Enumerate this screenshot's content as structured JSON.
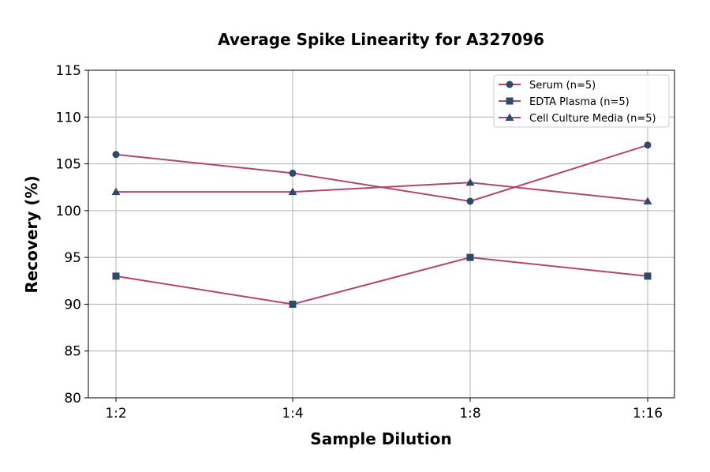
{
  "chart_data": {
    "type": "line",
    "title": "Average Spike Linearity for A327096",
    "xlabel": "Sample Dilution",
    "ylabel": "Recovery (%)",
    "categories": [
      "1:2",
      "1:4",
      "1:8",
      "1:16"
    ],
    "ylim": [
      80,
      115
    ],
    "yticks": [
      80,
      85,
      90,
      95,
      100,
      105,
      110,
      115
    ],
    "grid": true,
    "legend_position": "top-right",
    "line_color": "#b5446e",
    "marker_color": "#2e4a6b",
    "series": [
      {
        "name": "Serum (n=5)",
        "marker": "circle",
        "values": [
          106,
          104,
          101,
          107
        ]
      },
      {
        "name": "EDTA Plasma (n=5)",
        "marker": "square",
        "values": [
          93,
          90,
          95,
          93
        ]
      },
      {
        "name": "Cell Culture Media (n=5)",
        "marker": "triangle",
        "values": [
          102,
          102,
          103,
          101
        ]
      }
    ]
  }
}
